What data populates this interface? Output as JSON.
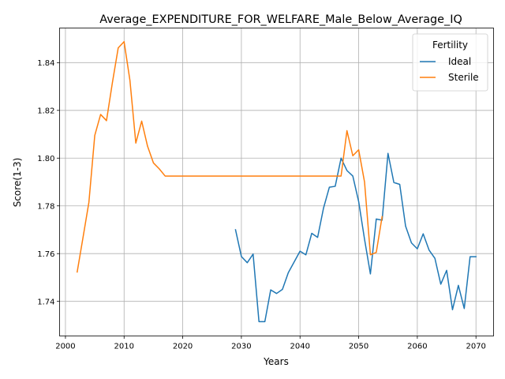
{
  "chart_data": {
    "type": "line",
    "title": "Average_EXPENDITURE_FOR_WELFARE_Male_Below_Average_IQ",
    "xlabel": "Years",
    "ylabel": "Score(1-3)",
    "xlim": [
      1999,
      2073
    ],
    "ylim": [
      1.7255,
      1.8545
    ],
    "xticks": [
      2000,
      2010,
      2020,
      2030,
      2040,
      2050,
      2060,
      2070
    ],
    "yticks": [
      1.74,
      1.76,
      1.78,
      1.8,
      1.82,
      1.84
    ],
    "ytick_labels": [
      "1.74",
      "1.76",
      "1.78",
      "1.80",
      "1.82",
      "1.84"
    ],
    "grid": true,
    "legend": {
      "title": "Fertility",
      "position": "top-right"
    },
    "series": [
      {
        "name": "Ideal",
        "color": "#1f77b4",
        "x": [
          2029,
          2030,
          2031,
          2032,
          2033,
          2034,
          2035,
          2036,
          2037,
          2038,
          2039,
          2040,
          2041,
          2042,
          2043,
          2044,
          2045,
          2046,
          2047,
          2048,
          2049,
          2050,
          2051,
          2052,
          2053,
          2054,
          2055,
          2056,
          2057,
          2058,
          2059,
          2060,
          2061,
          2062,
          2063,
          2064,
          2065,
          2066,
          2067,
          2068,
          2069,
          2070
        ],
        "y": [
          1.77,
          1.7588,
          1.7562,
          1.7598,
          1.7315,
          1.7315,
          1.7448,
          1.7433,
          1.745,
          1.752,
          1.7565,
          1.761,
          1.7595,
          1.7685,
          1.7668,
          1.779,
          1.7878,
          1.7882,
          1.8,
          1.7948,
          1.7925,
          1.7818,
          1.766,
          1.7515,
          1.7745,
          1.774,
          1.802,
          1.7898,
          1.789,
          1.7715,
          1.7645,
          1.762,
          1.7683,
          1.7615,
          1.758,
          1.7472,
          1.753,
          1.7365,
          1.7467,
          1.737,
          1.7587,
          1.7587
        ]
      },
      {
        "name": "Sterile",
        "color": "#ff7f0e",
        "x": [
          2002,
          2003,
          2004,
          2005,
          2006,
          2007,
          2008,
          2009,
          2010,
          2011,
          2012,
          2013,
          2014,
          2015,
          2016,
          2017,
          2018,
          2019,
          2020,
          2021,
          2022,
          2023,
          2024,
          2025,
          2026,
          2027,
          2028,
          2029,
          2030,
          2031,
          2032,
          2033,
          2034,
          2035,
          2036,
          2037,
          2038,
          2039,
          2040,
          2041,
          2042,
          2043,
          2044,
          2045,
          2046,
          2047,
          2048,
          2049,
          2050,
          2051,
          2052,
          2053,
          2054
        ],
        "y": [
          1.7523,
          1.7668,
          1.7815,
          1.8095,
          1.8183,
          1.8157,
          1.8315,
          1.8462,
          1.8488,
          1.8325,
          1.8063,
          1.8155,
          1.805,
          1.798,
          1.7955,
          1.7925,
          1.7925,
          1.7925,
          1.7925,
          1.7925,
          1.7925,
          1.7925,
          1.7925,
          1.7925,
          1.7925,
          1.7925,
          1.7925,
          1.7925,
          1.7925,
          1.7925,
          1.7925,
          1.7925,
          1.7925,
          1.7925,
          1.7925,
          1.7925,
          1.7925,
          1.7925,
          1.7925,
          1.7925,
          1.7925,
          1.7925,
          1.7925,
          1.7925,
          1.7925,
          1.7925,
          1.8115,
          1.801,
          1.8035,
          1.79,
          1.7595,
          1.7605,
          1.7755
        ]
      }
    ]
  }
}
